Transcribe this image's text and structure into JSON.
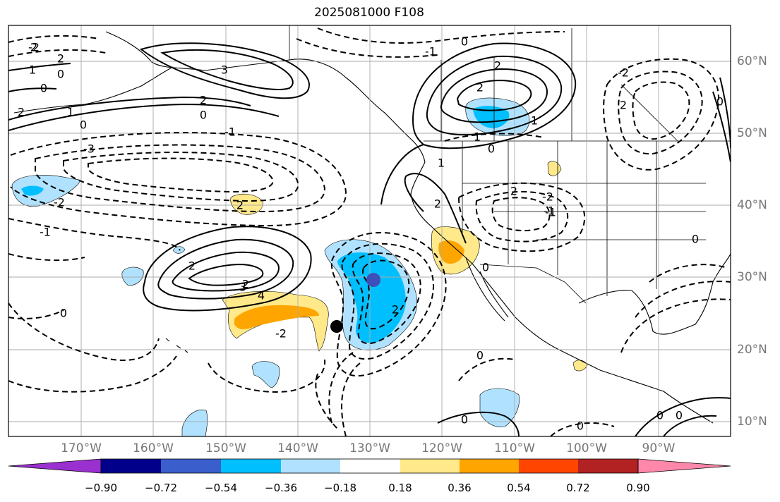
{
  "title": "2025081000 F108",
  "map": {
    "lon_range": [
      -180,
      -80
    ],
    "lat_range": [
      8,
      65
    ],
    "grid": true,
    "lon_labels": [
      "170°W",
      "160°W",
      "150°W",
      "140°W",
      "130°W",
      "120°W",
      "110°W",
      "100°W",
      "90°W"
    ],
    "lat_labels": [
      "60°N",
      "50°N",
      "40°N",
      "30°N",
      "20°N",
      "10°N"
    ]
  },
  "colorbar": {
    "ticks": [
      "−0.90",
      "−0.72",
      "−0.54",
      "−0.36",
      "−0.18",
      "0.18",
      "0.36",
      "0.54",
      "0.72",
      "0.90"
    ],
    "colors": [
      "#9b30d0",
      "#00008b",
      "#3a5fcd",
      "#00bfff",
      "#b0e2ff",
      "#ffffff",
      "#ffe98a",
      "#ffa500",
      "#ff4500",
      "#b22222",
      "#ff88aa"
    ],
    "extend": "both"
  },
  "contour_labels": [
    "2",
    "2",
    "1",
    "0",
    "0",
    "2",
    "1",
    "0",
    "3",
    "-2",
    "-1",
    "0",
    "2",
    "3",
    "4",
    "0",
    "2",
    "2",
    "1",
    "1",
    "2",
    "-1",
    "0",
    "0",
    "-3",
    "1",
    "2",
    "-1",
    "-2",
    "-2",
    "2",
    "2",
    "0",
    "0",
    "0",
    "2",
    "-2",
    "2",
    "-2",
    "2",
    "-1",
    "0",
    "0",
    "0",
    "0",
    "0",
    "-1"
  ],
  "markers": [
    {
      "name": "black-dot",
      "color": "#000000"
    },
    {
      "name": "blue-dot",
      "color": "#3d4fb8"
    }
  ]
}
